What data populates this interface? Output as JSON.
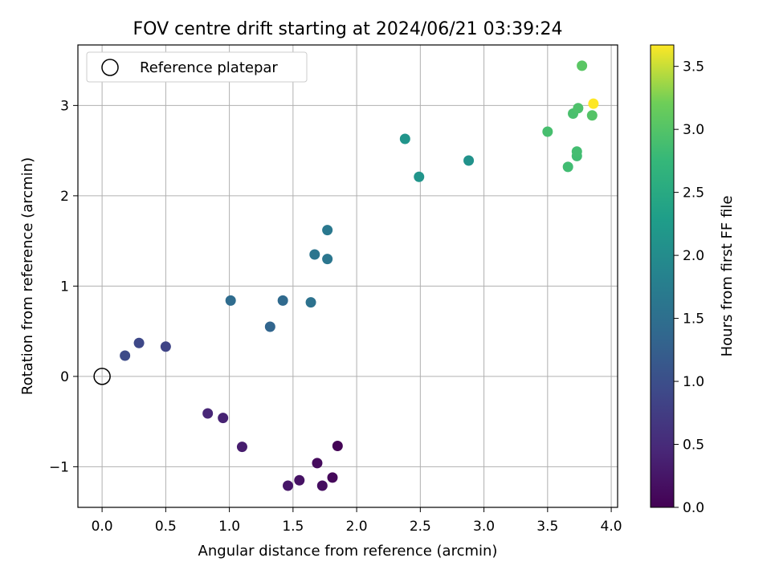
{
  "chart_data": {
    "type": "scatter",
    "title": "FOV centre drift starting at 2024/06/21 03:39:24",
    "xlabel": "Angular distance from reference (arcmin)",
    "ylabel": "Rotation from reference (arcmin)",
    "xlim": [
      -0.19,
      4.05
    ],
    "ylim": [
      -1.45,
      3.67
    ],
    "xticks": [
      0.0,
      0.5,
      1.0,
      1.5,
      2.0,
      2.5,
      3.0,
      3.5,
      4.0
    ],
    "xtick_labels": [
      "0.0",
      "0.5",
      "1.0",
      "1.5",
      "2.0",
      "2.5",
      "3.0",
      "3.5",
      "4.0"
    ],
    "yticks": [
      -1,
      0,
      1,
      2,
      3
    ],
    "ytick_labels": [
      "−1",
      "0",
      "1",
      "2",
      "3"
    ],
    "grid": true,
    "legend": {
      "location": "upper-left",
      "entries": [
        "Reference platepar"
      ]
    },
    "reference_point": {
      "x": 0.0,
      "y": 0.0
    },
    "colorbar": {
      "label": "Hours from first FF file",
      "colormap": "viridis",
      "range": [
        0.0,
        3.67
      ],
      "ticks": [
        0.0,
        0.5,
        1.0,
        1.5,
        2.0,
        2.5,
        3.0,
        3.5
      ],
      "tick_labels": [
        "0.0",
        "0.5",
        "1.0",
        "1.5",
        "2.0",
        "2.5",
        "3.0",
        "3.5"
      ]
    },
    "points": [
      {
        "x": 1.85,
        "y": -0.77,
        "hours": 0.03
      },
      {
        "x": 1.81,
        "y": -1.12,
        "hours": 0.08
      },
      {
        "x": 1.69,
        "y": -0.96,
        "hours": 0.12
      },
      {
        "x": 1.73,
        "y": -1.21,
        "hours": 0.15
      },
      {
        "x": 1.55,
        "y": -1.15,
        "hours": 0.2
      },
      {
        "x": 1.46,
        "y": -1.21,
        "hours": 0.25
      },
      {
        "x": 1.1,
        "y": -0.78,
        "hours": 0.33
      },
      {
        "x": 0.95,
        "y": -0.46,
        "hours": 0.4
      },
      {
        "x": 0.83,
        "y": -0.41,
        "hours": 0.45
      },
      {
        "x": 0.5,
        "y": 0.33,
        "hours": 0.85
      },
      {
        "x": 0.29,
        "y": 0.37,
        "hours": 0.9
      },
      {
        "x": 0.18,
        "y": 0.23,
        "hours": 0.95
      },
      {
        "x": 1.32,
        "y": 0.55,
        "hours": 1.35
      },
      {
        "x": 1.42,
        "y": 0.84,
        "hours": 1.42
      },
      {
        "x": 1.01,
        "y": 0.84,
        "hours": 1.45
      },
      {
        "x": 1.64,
        "y": 0.82,
        "hours": 1.55
      },
      {
        "x": 1.67,
        "y": 1.35,
        "hours": 1.6
      },
      {
        "x": 1.77,
        "y": 1.3,
        "hours": 1.62
      },
      {
        "x": 1.77,
        "y": 1.62,
        "hours": 1.65
      },
      {
        "x": 2.88,
        "y": 2.39,
        "hours": 2.1
      },
      {
        "x": 2.49,
        "y": 2.21,
        "hours": 2.15
      },
      {
        "x": 2.38,
        "y": 2.63,
        "hours": 2.15
      },
      {
        "x": 3.66,
        "y": 2.32,
        "hours": 2.85
      },
      {
        "x": 3.73,
        "y": 2.44,
        "hours": 2.85
      },
      {
        "x": 3.73,
        "y": 2.49,
        "hours": 2.87
      },
      {
        "x": 3.5,
        "y": 2.71,
        "hours": 2.9
      },
      {
        "x": 3.7,
        "y": 2.91,
        "hours": 2.92
      },
      {
        "x": 3.74,
        "y": 2.97,
        "hours": 2.95
      },
      {
        "x": 3.85,
        "y": 2.89,
        "hours": 3.0
      },
      {
        "x": 3.77,
        "y": 3.44,
        "hours": 3.05
      },
      {
        "x": 3.86,
        "y": 3.02,
        "hours": 3.67
      }
    ]
  }
}
